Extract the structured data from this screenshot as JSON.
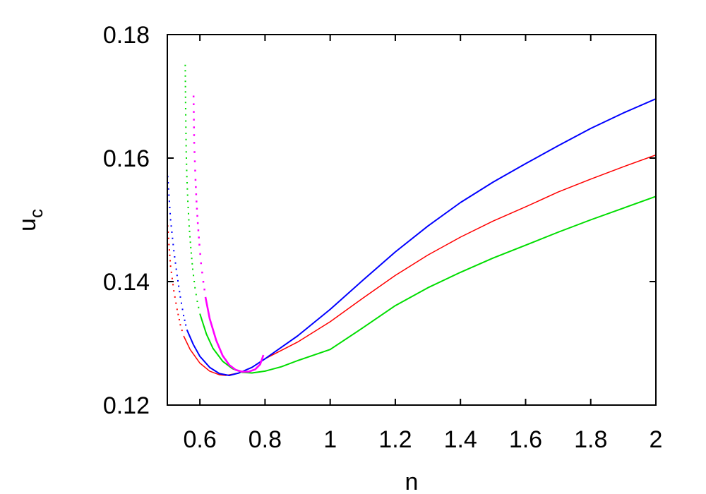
{
  "chart_data": {
    "type": "line",
    "title": "",
    "xlabel": "n",
    "ylabel": "u",
    "ylabel_subscript": "c",
    "xlim": [
      0.5,
      2.0
    ],
    "ylim": [
      0.12,
      0.18
    ],
    "grid": false,
    "legend": "none",
    "x_ticks": [
      0.6,
      0.8,
      1.0,
      1.2,
      1.4,
      1.6,
      1.8,
      2.0
    ],
    "x_tick_labels": [
      "0.6",
      "0.8",
      "1",
      "1.2",
      "1.4",
      "1.6",
      "1.8",
      "2"
    ],
    "y_ticks": [
      0.12,
      0.14,
      0.16,
      0.18
    ],
    "y_tick_labels": [
      "0.12",
      "0.14",
      "0.16",
      "0.18"
    ],
    "series": [
      {
        "name": "red",
        "color": "#ff0000",
        "dotted_points": [
          [
            0.5,
            0.15
          ],
          [
            0.505,
            0.146
          ],
          [
            0.51,
            0.1425
          ],
          [
            0.52,
            0.1385
          ],
          [
            0.53,
            0.1355
          ],
          [
            0.54,
            0.133
          ],
          [
            0.55,
            0.1312
          ]
        ],
        "points": [
          [
            0.55,
            0.1312
          ],
          [
            0.57,
            0.129
          ],
          [
            0.6,
            0.1268
          ],
          [
            0.63,
            0.1255
          ],
          [
            0.66,
            0.1249
          ],
          [
            0.68,
            0.1248
          ],
          [
            0.72,
            0.1252
          ],
          [
            0.76,
            0.1261
          ],
          [
            0.8,
            0.1275
          ],
          [
            0.9,
            0.1302
          ],
          [
            1.0,
            0.1335
          ],
          [
            1.1,
            0.1373
          ],
          [
            1.2,
            0.141
          ],
          [
            1.3,
            0.1443
          ],
          [
            1.4,
            0.1472
          ],
          [
            1.5,
            0.1498
          ],
          [
            1.6,
            0.1521
          ],
          [
            1.7,
            0.1545
          ],
          [
            1.8,
            0.1566
          ],
          [
            1.9,
            0.1586
          ],
          [
            2.0,
            0.1605
          ]
        ]
      },
      {
        "name": "blue",
        "color": "#0000ff",
        "dotted_points": [
          [
            0.5,
            0.158
          ],
          [
            0.505,
            0.154
          ],
          [
            0.51,
            0.15
          ],
          [
            0.52,
            0.145
          ],
          [
            0.53,
            0.141
          ],
          [
            0.54,
            0.1375
          ],
          [
            0.55,
            0.1345
          ],
          [
            0.56,
            0.1322
          ]
        ],
        "points": [
          [
            0.56,
            0.1322
          ],
          [
            0.58,
            0.1298
          ],
          [
            0.6,
            0.1279
          ],
          [
            0.63,
            0.1261
          ],
          [
            0.66,
            0.1251
          ],
          [
            0.69,
            0.1248
          ],
          [
            0.72,
            0.1252
          ],
          [
            0.76,
            0.1261
          ],
          [
            0.8,
            0.1275
          ],
          [
            0.9,
            0.1312
          ],
          [
            1.0,
            0.1355
          ],
          [
            1.1,
            0.1402
          ],
          [
            1.2,
            0.1448
          ],
          [
            1.3,
            0.149
          ],
          [
            1.4,
            0.1528
          ],
          [
            1.5,
            0.1561
          ],
          [
            1.6,
            0.1591
          ],
          [
            1.7,
            0.162
          ],
          [
            1.8,
            0.1648
          ],
          [
            1.9,
            0.1673
          ],
          [
            2.0,
            0.1696
          ]
        ]
      },
      {
        "name": "green",
        "color": "#00dd00",
        "dotted_points": [
          [
            0.555,
            0.175
          ],
          [
            0.556,
            0.169
          ],
          [
            0.557,
            0.165
          ],
          [
            0.558,
            0.161
          ],
          [
            0.56,
            0.157
          ],
          [
            0.563,
            0.153
          ],
          [
            0.567,
            0.149
          ],
          [
            0.572,
            0.1455
          ],
          [
            0.578,
            0.142
          ],
          [
            0.585,
            0.139
          ],
          [
            0.592,
            0.1368
          ],
          [
            0.6,
            0.1348
          ]
        ],
        "points": [
          [
            0.6,
            0.1348
          ],
          [
            0.62,
            0.1315
          ],
          [
            0.64,
            0.1292
          ],
          [
            0.67,
            0.1271
          ],
          [
            0.7,
            0.1259
          ],
          [
            0.73,
            0.1253
          ],
          [
            0.76,
            0.1252
          ],
          [
            0.8,
            0.1255
          ],
          [
            0.85,
            0.1262
          ],
          [
            0.9,
            0.1272
          ],
          [
            1.0,
            0.129
          ],
          [
            1.1,
            0.1325
          ],
          [
            1.2,
            0.1361
          ],
          [
            1.3,
            0.139
          ],
          [
            1.4,
            0.1415
          ],
          [
            1.5,
            0.1438
          ],
          [
            1.6,
            0.1459
          ],
          [
            1.7,
            0.148
          ],
          [
            1.8,
            0.15
          ],
          [
            1.9,
            0.1519
          ],
          [
            2.0,
            0.1538
          ]
        ]
      },
      {
        "name": "magenta",
        "color": "#ff00ff",
        "dotted_points": [
          [
            0.58,
            0.17
          ],
          [
            0.582,
            0.1625
          ],
          [
            0.584,
            0.1595
          ],
          [
            0.586,
            0.1565
          ],
          [
            0.589,
            0.153
          ],
          [
            0.593,
            0.1495
          ],
          [
            0.598,
            0.146
          ],
          [
            0.603,
            0.143
          ],
          [
            0.61,
            0.14
          ],
          [
            0.617,
            0.1375
          ]
        ],
        "points": [
          [
            0.617,
            0.1375
          ],
          [
            0.63,
            0.134
          ],
          [
            0.65,
            0.1305
          ],
          [
            0.67,
            0.128
          ],
          [
            0.69,
            0.1265
          ],
          [
            0.71,
            0.1257
          ],
          [
            0.73,
            0.1254
          ],
          [
            0.75,
            0.1254
          ],
          [
            0.77,
            0.1258
          ],
          [
            0.785,
            0.1266
          ],
          [
            0.795,
            0.1281
          ]
        ]
      }
    ]
  }
}
